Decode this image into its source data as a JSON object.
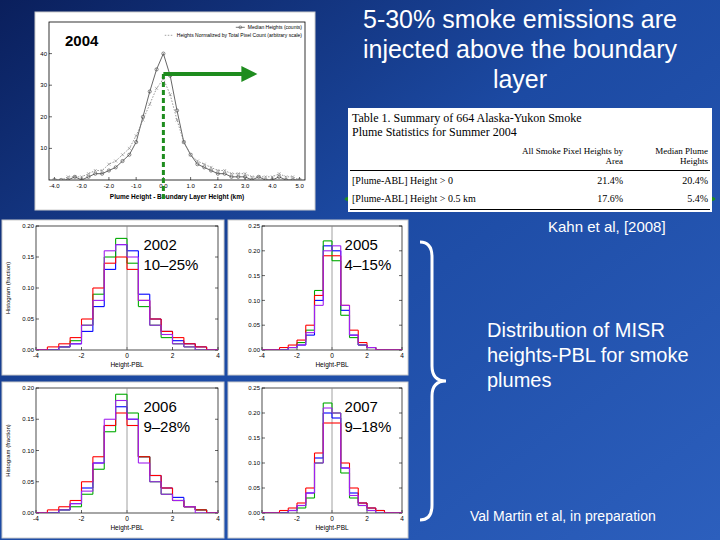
{
  "chart_data": [
    {
      "type": "line",
      "title": "2004",
      "x": [
        -4,
        -3.75,
        -3.5,
        -3.25,
        -3,
        -2.75,
        -2.5,
        -2.25,
        -2,
        -1.75,
        -1.5,
        -1.25,
        -1,
        -0.75,
        -0.5,
        -0.25,
        0,
        0.25,
        0.5,
        0.75,
        1,
        1.25,
        1.5,
        1.75,
        2,
        2.25,
        2.5,
        2.75,
        3,
        3.25,
        3.5,
        3.75,
        4,
        4.25,
        4.5,
        4.75,
        5
      ],
      "series": [
        {
          "name": "Median Heights (counts)",
          "color": "#555555",
          "marker": "circle",
          "line_style": "solid",
          "values": [
            0,
            0,
            0,
            1,
            0,
            1,
            2,
            2,
            3,
            4,
            6,
            8,
            12,
            20,
            28,
            35,
            40,
            33,
            22,
            12,
            8,
            5,
            4,
            3,
            2,
            2,
            1,
            1,
            1,
            0,
            1,
            0,
            0,
            1,
            0,
            0,
            0
          ]
        },
        {
          "name": "Heights Normalized by Total Pixel Count (arbitrary scale)",
          "color": "#8a8a8a",
          "marker": "cross",
          "line_style": "dotted",
          "values": [
            0,
            0,
            1,
            1,
            1,
            2,
            3,
            3,
            5,
            6,
            8,
            10,
            14,
            19,
            24,
            29,
            32,
            27,
            19,
            12,
            8,
            6,
            5,
            4,
            3,
            3,
            2,
            2,
            2,
            1,
            1,
            1,
            1,
            2,
            1,
            1,
            0
          ]
        }
      ],
      "xlabel": "Plume Height - Boundary Layer Height (km)",
      "xlim": [
        -4.2,
        5.2
      ],
      "xticks": [
        {
          "value": -4,
          "label": "-4.0"
        },
        {
          "value": -3,
          "label": "-3.0"
        },
        {
          "value": -2,
          "label": "-2.0"
        },
        {
          "value": -1,
          "label": "-1.0"
        },
        {
          "value": 0,
          "label": "0.0"
        },
        {
          "value": 1,
          "label": "1.0"
        },
        {
          "value": 2,
          "label": "2.0"
        },
        {
          "value": 3,
          "label": "3.0"
        },
        {
          "value": 4,
          "label": "4.0"
        },
        {
          "value": 5,
          "label": "5.0"
        }
      ],
      "ylim": [
        0,
        50
      ],
      "yticks": [
        10,
        20,
        30,
        40
      ],
      "legend": "top-right",
      "reference_line": 0
    },
    {
      "type": "histogram",
      "title": "2002",
      "subtitle": "10–25%",
      "bins": [
        -4,
        -3.5,
        -3,
        -2.5,
        -2,
        -1.5,
        -1,
        -0.5,
        0,
        0.5,
        1,
        1.5,
        2,
        2.5,
        3,
        3.5,
        4
      ],
      "series": [
        {
          "color": "#0000ff",
          "values": [
            0,
            0,
            0.005,
            0.01,
            0.03,
            0.07,
            0.13,
            0.17,
            0.16,
            0.09,
            0.05,
            0.03,
            0.015,
            0.01,
            0.005,
            0
          ]
        },
        {
          "color": "#00aa00",
          "values": [
            0,
            0,
            0.005,
            0.015,
            0.04,
            0.09,
            0.15,
            0.18,
            0.14,
            0.07,
            0.04,
            0.02,
            0.01,
            0.005,
            0,
            0
          ]
        },
        {
          "color": "#ff0000",
          "values": [
            0,
            0.005,
            0.01,
            0.02,
            0.05,
            0.1,
            0.14,
            0.15,
            0.13,
            0.08,
            0.05,
            0.03,
            0.02,
            0.01,
            0.005,
            0
          ]
        },
        {
          "color": "#a020f0",
          "values": [
            0,
            0,
            0.005,
            0.01,
            0.04,
            0.08,
            0.16,
            0.17,
            0.15,
            0.08,
            0.04,
            0.025,
            0.01,
            0.005,
            0,
            0
          ]
        }
      ],
      "xlabel": "Height-PBL",
      "ylabel": "Histogram (fraction)",
      "xlim": [
        -4,
        4
      ],
      "xticks": [
        -4,
        -2,
        0,
        2,
        4
      ],
      "ylim": [
        0,
        0.2
      ],
      "yticks": [
        {
          "value": 0,
          "label": "0.00"
        },
        {
          "value": 0.05,
          "label": "0.05"
        },
        {
          "value": 0.1,
          "label": "0.10"
        },
        {
          "value": 0.15,
          "label": "0.15"
        },
        {
          "value": 0.2,
          "label": "0.20"
        }
      ],
      "reference_line": 0
    },
    {
      "type": "histogram",
      "title": "2005",
      "subtitle": "4–15%",
      "bins": [
        -4,
        -3.5,
        -3,
        -2.5,
        -2,
        -1.5,
        -1,
        -0.5,
        0,
        0.5,
        1,
        1.5,
        2,
        2.5,
        3,
        3.5,
        4
      ],
      "series": [
        {
          "color": "#0000ff",
          "values": [
            0,
            0,
            0,
            0.005,
            0.01,
            0.03,
            0.1,
            0.21,
            0.2,
            0.08,
            0.03,
            0.01,
            0.005,
            0,
            0,
            0
          ]
        },
        {
          "color": "#00aa00",
          "values": [
            0,
            0,
            0,
            0.005,
            0.015,
            0.04,
            0.12,
            0.22,
            0.18,
            0.07,
            0.025,
            0.01,
            0.005,
            0,
            0,
            0
          ]
        },
        {
          "color": "#ff0000",
          "values": [
            0,
            0,
            0.005,
            0.01,
            0.02,
            0.05,
            0.11,
            0.19,
            0.19,
            0.09,
            0.04,
            0.015,
            0.005,
            0,
            0,
            0
          ]
        },
        {
          "color": "#a020f0",
          "values": [
            0,
            0,
            0,
            0.005,
            0.01,
            0.035,
            0.09,
            0.2,
            0.21,
            0.09,
            0.03,
            0.01,
            0.005,
            0,
            0,
            0
          ]
        }
      ],
      "xlabel": "Height-PBL",
      "xlim": [
        -4,
        4
      ],
      "xticks": [
        -4,
        -2,
        0,
        2,
        4
      ],
      "ylim": [
        0,
        0.25
      ],
      "yticks": [
        {
          "value": 0,
          "label": "0.00"
        },
        {
          "value": 0.05,
          "label": "0.05"
        },
        {
          "value": 0.1,
          "label": "0.10"
        },
        {
          "value": 0.15,
          "label": "0.15"
        },
        {
          "value": 0.2,
          "label": "0.20"
        },
        {
          "value": 0.25,
          "label": "0.25"
        }
      ],
      "reference_line": 0
    },
    {
      "type": "histogram",
      "title": "2006",
      "subtitle": "9–28%",
      "bins": [
        -4,
        -3.5,
        -3,
        -2.5,
        -2,
        -1.5,
        -1,
        -0.5,
        0,
        0.5,
        1,
        1.5,
        2,
        2.5,
        3,
        3.5,
        4
      ],
      "series": [
        {
          "color": "#0000ff",
          "values": [
            0,
            0,
            0.005,
            0.015,
            0.04,
            0.08,
            0.14,
            0.17,
            0.15,
            0.09,
            0.06,
            0.04,
            0.025,
            0.01,
            0.005,
            0
          ]
        },
        {
          "color": "#00aa00",
          "values": [
            0,
            0,
            0.005,
            0.01,
            0.03,
            0.07,
            0.13,
            0.19,
            0.16,
            0.09,
            0.05,
            0.03,
            0.02,
            0.01,
            0.005,
            0
          ]
        },
        {
          "color": "#ff0000",
          "values": [
            0,
            0.005,
            0.01,
            0.02,
            0.05,
            0.09,
            0.14,
            0.16,
            0.14,
            0.09,
            0.06,
            0.04,
            0.02,
            0.01,
            0.005,
            0
          ]
        },
        {
          "color": "#a020f0",
          "values": [
            0,
            0,
            0.005,
            0.015,
            0.035,
            0.08,
            0.15,
            0.18,
            0.15,
            0.08,
            0.05,
            0.03,
            0.02,
            0.01,
            0,
            0
          ]
        }
      ],
      "xlabel": "Height-PBL",
      "ylabel": "Histogram (fraction)",
      "xlim": [
        -4,
        4
      ],
      "xticks": [
        -4,
        -2,
        0,
        2,
        4
      ],
      "ylim": [
        0,
        0.2
      ],
      "yticks": [
        {
          "value": 0,
          "label": "0.00"
        },
        {
          "value": 0.05,
          "label": "0.05"
        },
        {
          "value": 0.1,
          "label": "0.10"
        },
        {
          "value": 0.15,
          "label": "0.15"
        },
        {
          "value": 0.2,
          "label": "0.20"
        }
      ],
      "reference_line": 0
    },
    {
      "type": "histogram",
      "title": "2007",
      "subtitle": "9–18%",
      "bins": [
        -4,
        -3.5,
        -3,
        -2.5,
        -2,
        -1.5,
        -1,
        -0.5,
        0,
        0.5,
        1,
        1.5,
        2,
        2.5,
        3,
        3.5,
        4
      ],
      "series": [
        {
          "color": "#0000ff",
          "values": [
            0,
            0,
            0,
            0.005,
            0.015,
            0.04,
            0.11,
            0.2,
            0.19,
            0.09,
            0.04,
            0.02,
            0.01,
            0.005,
            0,
            0
          ]
        },
        {
          "color": "#00aa00",
          "values": [
            0,
            0,
            0,
            0.005,
            0.01,
            0.03,
            0.1,
            0.22,
            0.2,
            0.08,
            0.03,
            0.015,
            0.005,
            0,
            0,
            0
          ]
        },
        {
          "color": "#ff0000",
          "values": [
            0,
            0,
            0.005,
            0.01,
            0.02,
            0.05,
            0.12,
            0.18,
            0.18,
            0.1,
            0.05,
            0.02,
            0.01,
            0.005,
            0,
            0
          ]
        },
        {
          "color": "#a020f0",
          "values": [
            0,
            0,
            0,
            0.005,
            0.015,
            0.04,
            0.1,
            0.21,
            0.2,
            0.09,
            0.035,
            0.015,
            0.005,
            0,
            0,
            0
          ]
        }
      ],
      "xlabel": "Height-PBL",
      "xlim": [
        -4,
        4
      ],
      "xticks": [
        -4,
        -2,
        0,
        2,
        4
      ],
      "ylim": [
        0,
        0.25
      ],
      "yticks": [
        {
          "value": 0,
          "label": "0.00"
        },
        {
          "value": 0.05,
          "label": "0.05"
        },
        {
          "value": 0.1,
          "label": "0.10"
        },
        {
          "value": 0.15,
          "label": "0.15"
        },
        {
          "value": 0.2,
          "label": "0.20"
        },
        {
          "value": 0.25,
          "label": "0.25"
        }
      ],
      "reference_line": 0
    }
  ],
  "slide": {
    "title": "5-30% smoke emissions are injected above the boundary layer",
    "table": {
      "caption": "Table 1. Summary of 664 Alaska-Yukon Smoke Plume Statistics for Summer 2004",
      "columns": [
        "All Smoke Pixel Heights by Area",
        "Median Plume Heights"
      ],
      "rows": [
        {
          "label": "[Plume-ABL] Height > 0",
          "cells": [
            "21.4%",
            "20.4%"
          ]
        },
        {
          "label": "[Plume-ABL] Height > 0.5 km",
          "cells": [
            "17.6%",
            "5.4%"
          ]
        }
      ]
    },
    "source_top": "Kahn et al, [2008]",
    "caption": "Distribution of MISR heights-PBL for smoke plumes",
    "source_bottom": "Val Martin et al, in preparation"
  }
}
